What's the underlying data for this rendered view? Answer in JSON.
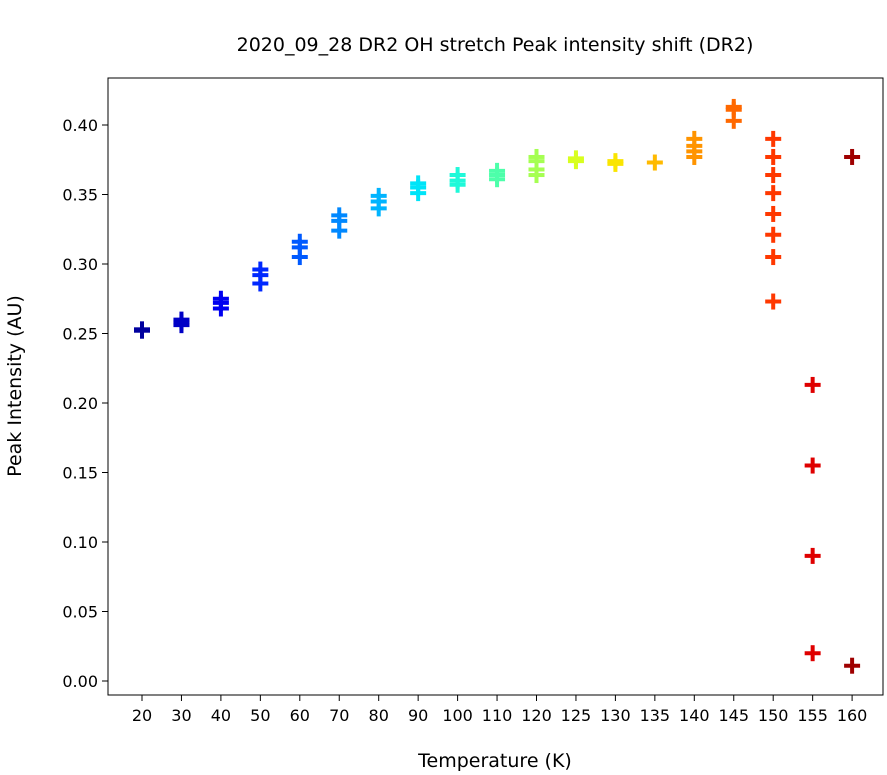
{
  "chart_data": {
    "type": "scatter",
    "title": "2020_09_28 DR2 OH stretch Peak intensity shift (DR2)",
    "xlabel": "Temperature (K)",
    "ylabel": "Peak Intensity (AU)",
    "categories": [
      "20",
      "30",
      "40",
      "50",
      "60",
      "70",
      "80",
      "90",
      "100",
      "110",
      "120",
      "125",
      "130",
      "135",
      "140",
      "145",
      "150",
      "155",
      "160"
    ],
    "ylim": [
      -0.01,
      0.433
    ],
    "yticks": [
      "0.00",
      "0.05",
      "0.10",
      "0.15",
      "0.20",
      "0.25",
      "0.30",
      "0.35",
      "0.40"
    ],
    "marker": "plus",
    "grid": false,
    "series": [
      {
        "x": "20",
        "color": "#00009f",
        "values": [
          0.252,
          0.253
        ]
      },
      {
        "x": "30",
        "color": "#0000c6",
        "values": [
          0.256,
          0.258,
          0.26
        ]
      },
      {
        "x": "40",
        "color": "#0000f0",
        "values": [
          0.268,
          0.272,
          0.275
        ]
      },
      {
        "x": "50",
        "color": "#0028ff",
        "values": [
          0.286,
          0.292,
          0.296
        ]
      },
      {
        "x": "60",
        "color": "#005aff",
        "values": [
          0.305,
          0.312,
          0.316
        ]
      },
      {
        "x": "70",
        "color": "#0088ff",
        "values": [
          0.324,
          0.331,
          0.335
        ]
      },
      {
        "x": "80",
        "color": "#00b4ff",
        "values": [
          0.34,
          0.345,
          0.349
        ]
      },
      {
        "x": "90",
        "color": "#00e4f8",
        "values": [
          0.351,
          0.355,
          0.358
        ]
      },
      {
        "x": "100",
        "color": "#1ff9d9",
        "values": [
          0.357,
          0.36,
          0.364
        ]
      },
      {
        "x": "110",
        "color": "#4dffaa",
        "values": [
          0.361,
          0.364,
          0.367
        ]
      },
      {
        "x": "120",
        "color": "#a5ff52",
        "values": [
          0.364,
          0.368,
          0.374,
          0.377
        ]
      },
      {
        "x": "125",
        "color": "#d8ff1f",
        "values": [
          0.374,
          0.376
        ]
      },
      {
        "x": "130",
        "color": "#fae500",
        "values": [
          0.372,
          0.374
        ]
      },
      {
        "x": "135",
        "color": "#ffba00",
        "values": [
          0.373
        ]
      },
      {
        "x": "140",
        "color": "#ff9400",
        "values": [
          0.377,
          0.381,
          0.385,
          0.39
        ]
      },
      {
        "x": "145",
        "color": "#ff6800",
        "values": [
          0.403,
          0.411,
          0.413
        ]
      },
      {
        "x": "150",
        "color": "#ff3800",
        "values": [
          0.39,
          0.377,
          0.364,
          0.351,
          0.336,
          0.321,
          0.305,
          0.273
        ]
      },
      {
        "x": "155",
        "color": "#df0000",
        "values": [
          0.213,
          0.155,
          0.09,
          0.02
        ]
      },
      {
        "x": "160",
        "color": "#9f0000",
        "values": [
          0.377,
          0.011
        ]
      }
    ]
  }
}
